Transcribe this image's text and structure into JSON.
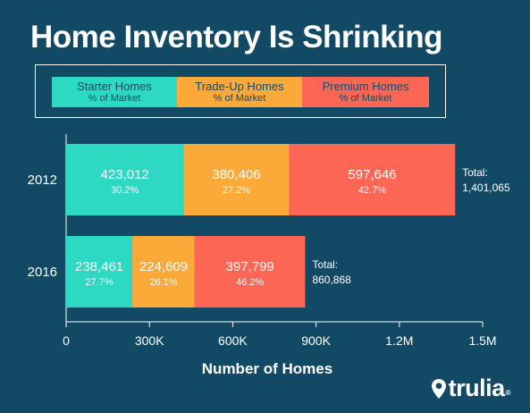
{
  "title": "Home Inventory Is Shrinking",
  "brand": {
    "name": "trulia",
    "mark": "®"
  },
  "legend": [
    {
      "name": "Starter Homes",
      "sub": "% of Market",
      "color": "#2ed9c3"
    },
    {
      "name": "Trade-Up Homes",
      "sub": "% of Market",
      "color": "#fbaa3a"
    },
    {
      "name": "Premium Homes",
      "sub": "% of Market",
      "color": "#fd6654"
    }
  ],
  "chart_data": {
    "type": "bar",
    "orientation": "horizontal",
    "stacked": true,
    "categories": [
      "2012",
      "2016"
    ],
    "series": [
      {
        "name": "Starter Homes",
        "values": [
          423012,
          238461
        ],
        "labels": [
          "423,012",
          "238,461"
        ],
        "percents": [
          "30.2%",
          "27.7%"
        ],
        "color": "#2ed9c3"
      },
      {
        "name": "Trade-Up Homes",
        "values": [
          380406,
          224609
        ],
        "labels": [
          "380,406",
          "224,609"
        ],
        "percents": [
          "27.2%",
          "26.1%"
        ],
        "color": "#fbaa3a"
      },
      {
        "name": "Premium Homes",
        "values": [
          597646,
          397799
        ],
        "labels": [
          "597,646",
          "397,799"
        ],
        "percents": [
          "42.7%",
          "46.2%"
        ],
        "color": "#fd6654"
      }
    ],
    "totals": [
      {
        "label": "Total:",
        "value": "1,401,065"
      },
      {
        "label": "Total:",
        "value": "860,868"
      }
    ],
    "xlabel": "Number of Homes",
    "ylabel": "",
    "xlim": [
      0,
      1500000
    ],
    "xticks": [
      0,
      300000,
      600000,
      900000,
      1200000,
      1500000
    ],
    "xtick_labels": [
      "0",
      "300K",
      "600K",
      "900K",
      "1.2M",
      "1.5M"
    ],
    "grid": false
  }
}
